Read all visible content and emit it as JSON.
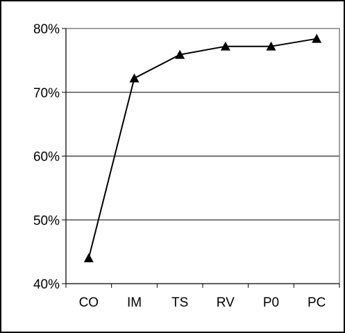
{
  "chart_data": {
    "type": "line",
    "title": "",
    "xlabel": "",
    "ylabel": "",
    "categories": [
      "CO",
      "IM",
      "TS",
      "RV",
      "P0",
      "PC"
    ],
    "series": [
      {
        "values": [
          0.44,
          0.722,
          0.759,
          0.772,
          0.772,
          0.784
        ]
      }
    ],
    "ylim": [
      0.4,
      0.8
    ],
    "yticks": [
      0.4,
      0.5,
      0.6,
      0.7,
      0.8
    ],
    "ytick_labels": [
      "40%",
      "50%",
      "60%",
      "70%",
      "80%"
    ],
    "grid": "horizontal",
    "marker": "triangle",
    "legend": "none",
    "colors": {
      "line": "#000000",
      "marker": "#000000",
      "grid": "#000000",
      "plot_border": "#808080",
      "outer_border": "#000000",
      "background": "#ffffff"
    }
  }
}
